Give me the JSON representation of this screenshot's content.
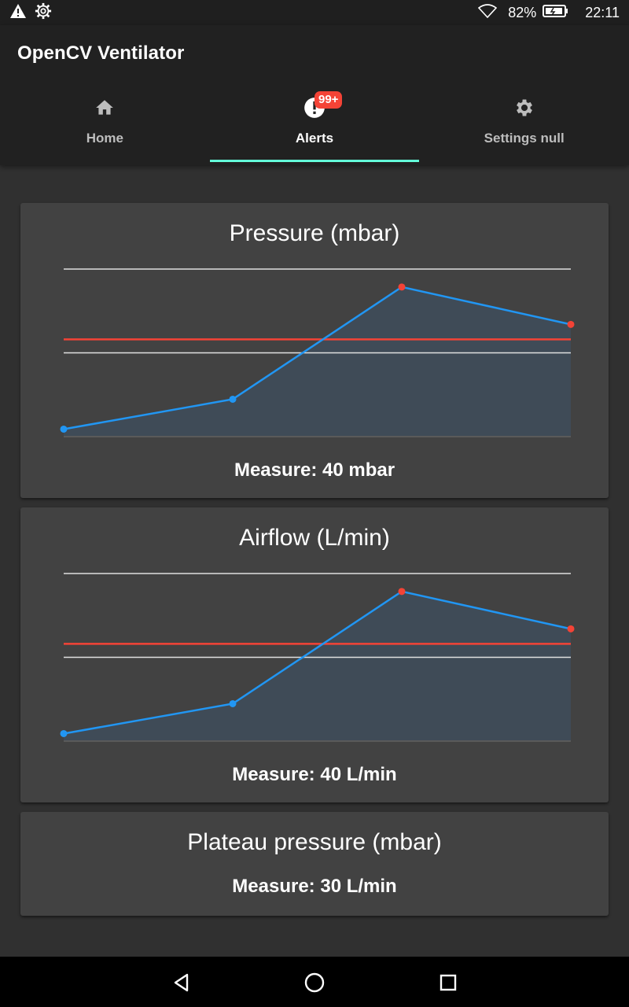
{
  "status_bar": {
    "icons": [
      "warning-icon",
      "gear-icon",
      "wifi-icon",
      "battery-icon"
    ],
    "battery": "82%",
    "time": "22:11"
  },
  "app": {
    "title": "OpenCV Ventilator"
  },
  "tabs": [
    {
      "label": "Home",
      "icon": "home-icon"
    },
    {
      "label": "Alerts",
      "icon": "alert-icon",
      "badge": "99+",
      "active": true
    },
    {
      "label": "Settings null",
      "icon": "gear-icon"
    }
  ],
  "cards": [
    {
      "title": "Pressure (mbar)",
      "measure": "Measure: 40 mbar"
    },
    {
      "title": "Airflow (L/min)",
      "measure": "Measure: 40 L/min"
    },
    {
      "title": "Plateau pressure (mbar)",
      "measure": "Measure: 30 L/min"
    }
  ],
  "colors": {
    "line": "#2196f3",
    "alarm": "#f44336",
    "accent": "#64ffda",
    "fill": "#3f4c59"
  },
  "chart_data": [
    {
      "type": "area",
      "x": [
        0,
        1,
        2,
        3
      ],
      "values": [
        5,
        25,
        100,
        75
      ],
      "point_colors": [
        "#2196f3",
        "#2196f3",
        "#f44336",
        "#f44336"
      ],
      "threshold": 65,
      "reference_lines": [
        112,
        56
      ],
      "ylim": [
        0,
        112
      ]
    },
    {
      "type": "area",
      "x": [
        0,
        1,
        2,
        3
      ],
      "values": [
        5,
        25,
        100,
        75
      ],
      "point_colors": [
        "#2196f3",
        "#2196f3",
        "#f44336",
        "#f44336"
      ],
      "threshold": 65,
      "reference_lines": [
        112,
        56
      ],
      "ylim": [
        0,
        112
      ]
    }
  ],
  "navbar": {
    "buttons": [
      "back-icon",
      "home-circle-icon",
      "recents-icon"
    ]
  }
}
